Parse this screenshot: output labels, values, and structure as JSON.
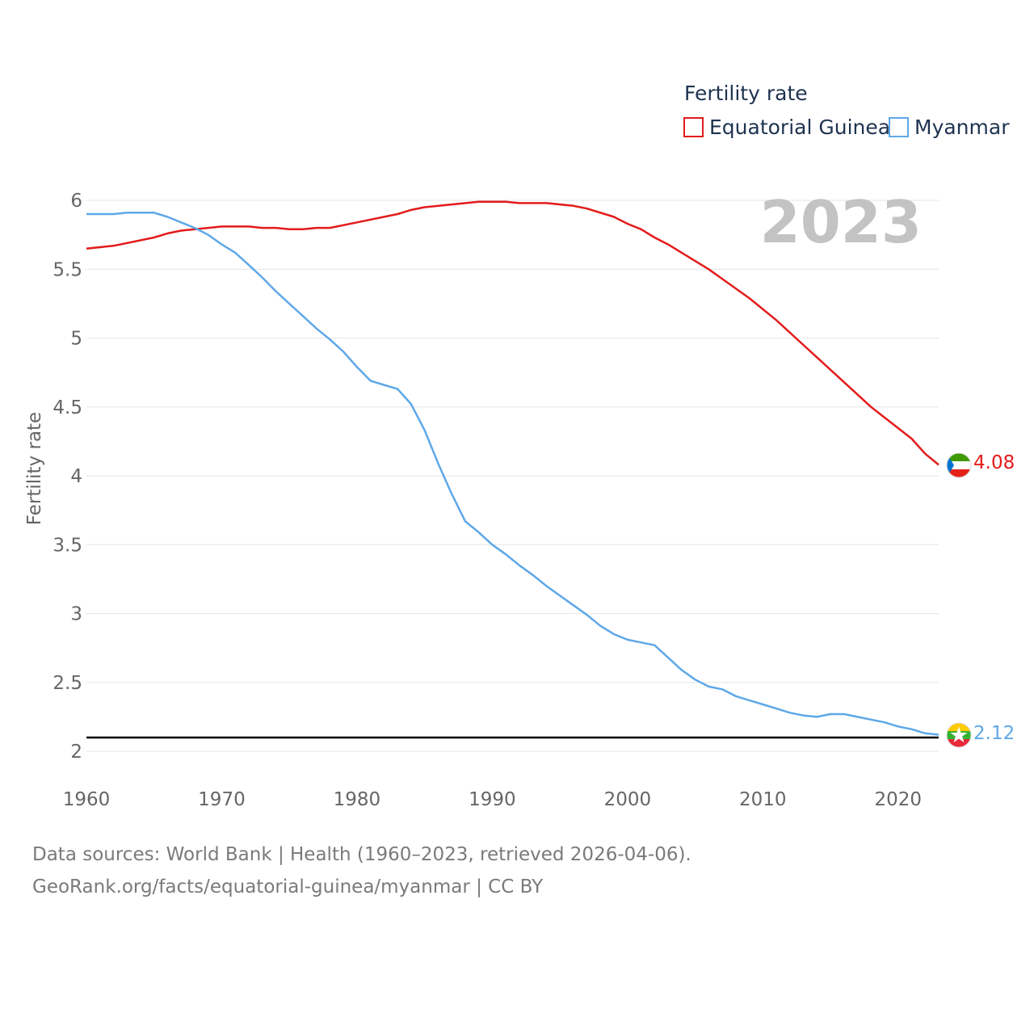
{
  "colors": {
    "equatorial_guinea": "#e31b1b",
    "myanmar": "#5ea8e8",
    "reference_line": "#000000",
    "grid": "#e6e6e6",
    "tick_text": "#666666",
    "year_label": "#c3c3c3"
  },
  "chart_data": {
    "type": "line",
    "title": "Fertility rate",
    "ylabel": "Fertility rate",
    "xlabel": "",
    "year_label": "2023",
    "xlim": [
      1960,
      2023
    ],
    "ylim": [
      2,
      6
    ],
    "x_ticks": [
      "1960",
      "1970",
      "1980",
      "1990",
      "2000",
      "2010",
      "2020"
    ],
    "y_ticks": [
      "2",
      "2.5",
      "3",
      "3.5",
      "4",
      "4.5",
      "5",
      "5.5",
      "6"
    ],
    "reference_line": 2.1,
    "legend": [
      "Equatorial Guinea",
      "Myanmar"
    ],
    "series": [
      {
        "name": "Equatorial Guinea",
        "color": "#e31b1b",
        "end_label": "4.08",
        "flag_icon": "equatorial-guinea-flag-icon",
        "points": [
          [
            1960,
            5.65
          ],
          [
            1962,
            5.67
          ],
          [
            1965,
            5.73
          ],
          [
            1966,
            5.76
          ],
          [
            1967,
            5.78
          ],
          [
            1970,
            5.81
          ],
          [
            1972,
            5.81
          ],
          [
            1973,
            5.8
          ],
          [
            1974,
            5.8
          ],
          [
            1975,
            5.79
          ],
          [
            1976,
            5.79
          ],
          [
            1977,
            5.8
          ],
          [
            1978,
            5.8
          ],
          [
            1980,
            5.84
          ],
          [
            1983,
            5.9
          ],
          [
            1984,
            5.93
          ],
          [
            1985,
            5.95
          ],
          [
            1987,
            5.97
          ],
          [
            1989,
            5.99
          ],
          [
            1991,
            5.99
          ],
          [
            1992,
            5.98
          ],
          [
            1994,
            5.98
          ],
          [
            1996,
            5.96
          ],
          [
            1997,
            5.94
          ],
          [
            1999,
            5.88
          ],
          [
            2000,
            5.83
          ],
          [
            2001,
            5.79
          ],
          [
            2002,
            5.73
          ],
          [
            2003,
            5.68
          ],
          [
            2004,
            5.62
          ],
          [
            2006,
            5.5
          ],
          [
            2009,
            5.29
          ],
          [
            2011,
            5.13
          ],
          [
            2013,
            4.95
          ],
          [
            2015,
            4.77
          ],
          [
            2016,
            4.68
          ],
          [
            2018,
            4.5
          ],
          [
            2021,
            4.27
          ],
          [
            2022,
            4.16
          ],
          [
            2023,
            4.08
          ]
        ]
      },
      {
        "name": "Myanmar",
        "color": "#5ea8e8",
        "end_label": "2.12",
        "flag_icon": "myanmar-flag-icon",
        "points": [
          [
            1960,
            5.9
          ],
          [
            1962,
            5.9
          ],
          [
            1963,
            5.91
          ],
          [
            1965,
            5.91
          ],
          [
            1966,
            5.88
          ],
          [
            1967,
            5.84
          ],
          [
            1968,
            5.8
          ],
          [
            1969,
            5.75
          ],
          [
            1970,
            5.68
          ],
          [
            1971,
            5.62
          ],
          [
            1972,
            5.53
          ],
          [
            1973,
            5.44
          ],
          [
            1974,
            5.34
          ],
          [
            1975,
            5.25
          ],
          [
            1976,
            5.16
          ],
          [
            1977,
            5.07
          ],
          [
            1978,
            4.99
          ],
          [
            1979,
            4.9
          ],
          [
            1980,
            4.79
          ],
          [
            1981,
            4.69
          ],
          [
            1982,
            4.66
          ],
          [
            1983,
            4.63
          ],
          [
            1984,
            4.52
          ],
          [
            1985,
            4.33
          ],
          [
            1986,
            4.09
          ],
          [
            1987,
            3.87
          ],
          [
            1988,
            3.67
          ],
          [
            1989,
            3.59
          ],
          [
            1990,
            3.5
          ],
          [
            1991,
            3.43
          ],
          [
            1992,
            3.35
          ],
          [
            1993,
            3.28
          ],
          [
            1994,
            3.2
          ],
          [
            1995,
            3.13
          ],
          [
            1996,
            3.06
          ],
          [
            1997,
            2.99
          ],
          [
            1998,
            2.91
          ],
          [
            1999,
            2.85
          ],
          [
            2000,
            2.81
          ],
          [
            2001,
            2.79
          ],
          [
            2002,
            2.77
          ],
          [
            2003,
            2.68
          ],
          [
            2004,
            2.59
          ],
          [
            2005,
            2.52
          ],
          [
            2006,
            2.47
          ],
          [
            2007,
            2.45
          ],
          [
            2008,
            2.4
          ],
          [
            2009,
            2.37
          ],
          [
            2010,
            2.34
          ],
          [
            2011,
            2.31
          ],
          [
            2012,
            2.28
          ],
          [
            2013,
            2.26
          ],
          [
            2014,
            2.25
          ],
          [
            2015,
            2.27
          ],
          [
            2016,
            2.27
          ],
          [
            2017,
            2.25
          ],
          [
            2018,
            2.23
          ],
          [
            2019,
            2.21
          ],
          [
            2020,
            2.18
          ],
          [
            2021,
            2.16
          ],
          [
            2022,
            2.13
          ],
          [
            2023,
            2.12
          ]
        ]
      }
    ]
  },
  "footer": {
    "source_line": "Data sources: World Bank | Health (1960–2023, retrieved 2026-04-06).",
    "url_line": "GeoRank.org/facts/equatorial-guinea/myanmar | CC BY"
  }
}
